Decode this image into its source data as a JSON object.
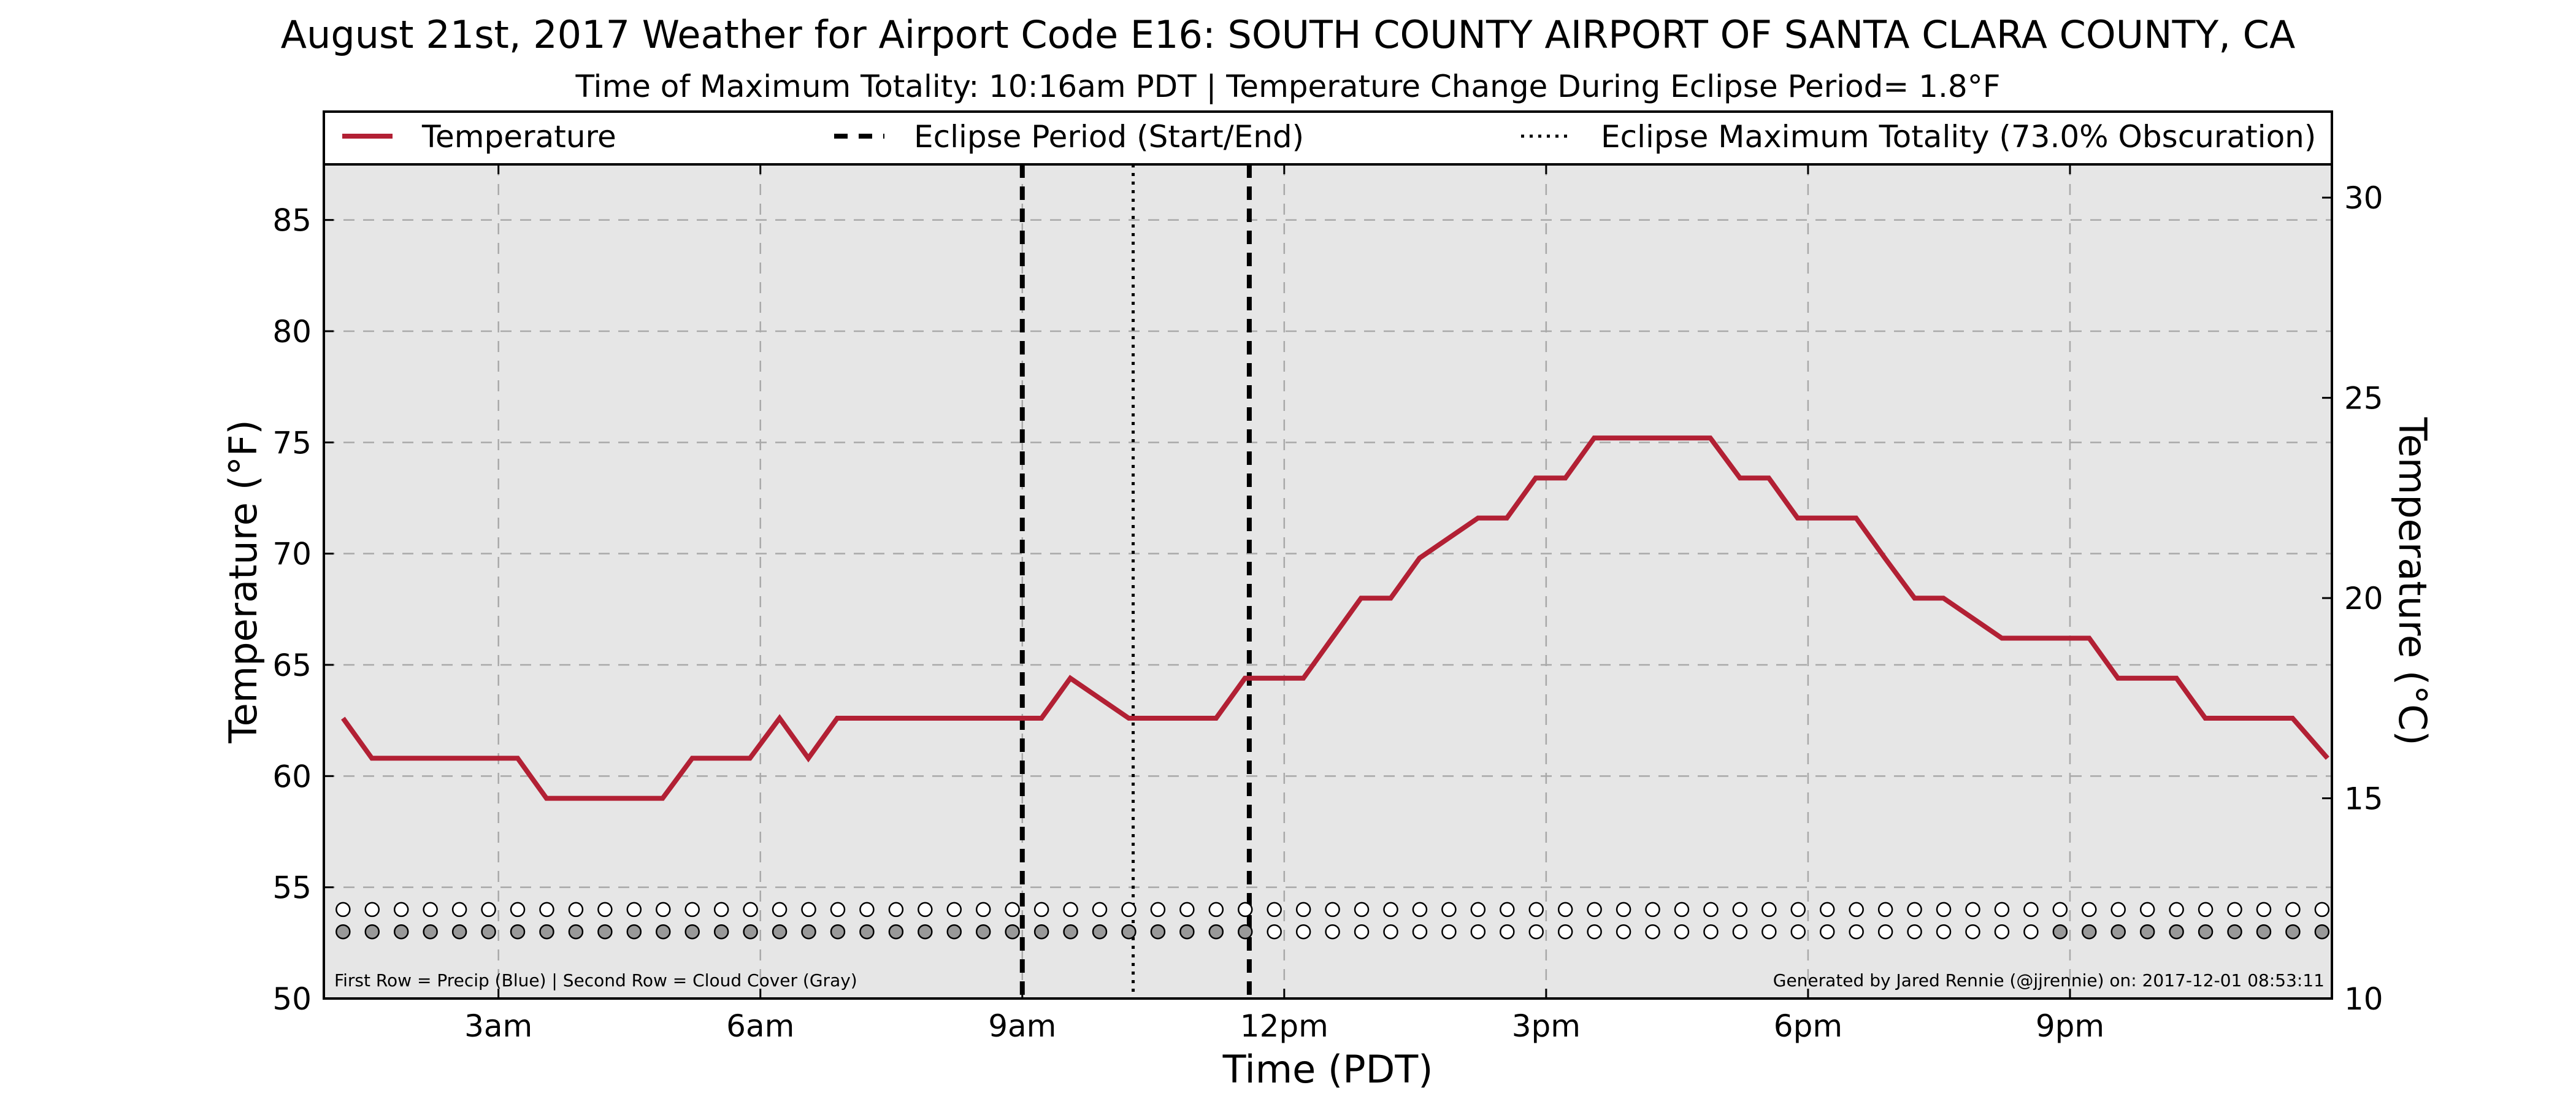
{
  "chart_data": {
    "type": "line",
    "title": "August 21st, 2017 Weather for Airport Code E16: SOUTH COUNTY AIRPORT OF SANTA CLARA COUNTY, CA",
    "subtitle": "Time of Maximum Totality: 10:16am PDT | Temperature Change During Eclipse Period= 1.8°F",
    "xlabel": "Time (PDT)",
    "ylabel": "Temperature (°F)",
    "ylabel_right": "Temperature (°C)",
    "xlim": [
      1.0,
      24.0
    ],
    "ylim": [
      50,
      87.5
    ],
    "ylim_right": [
      10,
      30.83
    ],
    "x_ticks": [
      3,
      6,
      9,
      12,
      15,
      18,
      21
    ],
    "x_tick_labels": [
      "3am",
      "6am",
      "9am",
      "12pm",
      "3pm",
      "6pm",
      "9pm"
    ],
    "y_ticks": [
      50,
      55,
      60,
      65,
      70,
      75,
      80,
      85
    ],
    "y_tick_labels": [
      "50",
      "55",
      "60",
      "65",
      "70",
      "75",
      "80",
      "85"
    ],
    "y_right_ticks": [
      10,
      15,
      20,
      25,
      30
    ],
    "y_right_tick_labels": [
      "10",
      "15",
      "20",
      "25",
      "30"
    ],
    "grid": true,
    "legend_position": "top",
    "legend": [
      {
        "label": "Temperature",
        "style": "solid",
        "color": "#b22034"
      },
      {
        "label": "Eclipse Period (Start/End)",
        "style": "dashed",
        "color": "#000000"
      },
      {
        "label": "Eclipse Maximum Totality (73.0% Obscuration)",
        "style": "dotted",
        "color": "#000000"
      }
    ],
    "series": [
      {
        "name": "Temperature",
        "color": "#b22034",
        "x": [
          1.22,
          1.55,
          2.22,
          2.88,
          3.22,
          3.55,
          4.22,
          4.88,
          5.22,
          5.88,
          6.22,
          6.55,
          6.88,
          7.55,
          8.22,
          8.88,
          9.22,
          9.55,
          10.22,
          10.88,
          11.22,
          11.55,
          12.22,
          12.55,
          12.88,
          13.22,
          13.55,
          14.22,
          14.55,
          14.88,
          15.22,
          15.55,
          16.22,
          16.55,
          16.88,
          17.22,
          17.55,
          17.88,
          18.55,
          18.88,
          19.22,
          19.55,
          20.22,
          20.88,
          21.22,
          21.55,
          22.22,
          22.55,
          23.22,
          23.55,
          23.95
        ],
        "y": [
          62.6,
          60.8,
          60.8,
          60.8,
          60.8,
          59.0,
          59.0,
          59.0,
          60.8,
          60.8,
          62.6,
          60.8,
          62.6,
          62.6,
          62.6,
          62.6,
          62.6,
          64.4,
          62.6,
          62.6,
          62.6,
          64.4,
          64.4,
          66.2,
          68.0,
          68.0,
          69.8,
          71.6,
          71.6,
          73.4,
          73.4,
          75.2,
          75.2,
          75.2,
          75.2,
          73.4,
          73.4,
          71.6,
          71.6,
          69.8,
          68.0,
          68.0,
          66.2,
          66.2,
          66.2,
          64.4,
          64.4,
          62.6,
          62.6,
          62.6,
          60.8
        ]
      }
    ],
    "eclipse_start": 9.0,
    "eclipse_end": 11.6,
    "eclipse_max": 10.27,
    "precip_row": {
      "level": 54.0,
      "filled_color": "#1f5fd6",
      "filled": []
    },
    "cloud_row": {
      "level": 53.0,
      "filled_color": "#999999",
      "filled_from": 1.0,
      "filled_to": 11.6,
      "filled_late_from": 20.88
    }
  },
  "footnote_left": "First Row = Precip (Blue) | Second Row = Cloud Cover (Gray)",
  "footnote_right": "Generated by Jared Rennie (@jjrennie) on: 2017-12-01 08:53:11"
}
